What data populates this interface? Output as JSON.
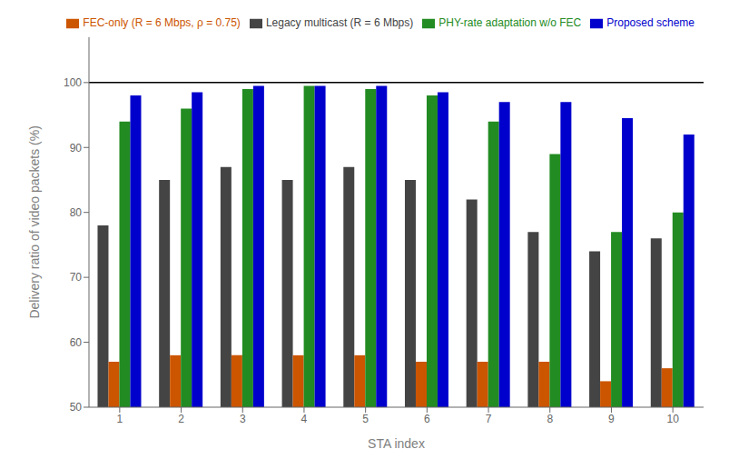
{
  "chart_data": {
    "type": "bar",
    "categories": [
      "1",
      "2",
      "3",
      "4",
      "5",
      "6",
      "7",
      "8",
      "9",
      "10"
    ],
    "series": [
      {
        "name": "Legacy multicast (R = 6 Mbps)",
        "color": "#444444",
        "values": [
          78.0,
          85.0,
          87.0,
          85.0,
          87.0,
          85.0,
          82.0,
          77.0,
          74.0,
          76.0
        ]
      },
      {
        "name": "FEC-only (R = 6 Mbps, ρ = 0.75)",
        "color": "#cc5500",
        "values": [
          57.0,
          58.0,
          58.0,
          58.0,
          58.0,
          57.0,
          57.0,
          57.0,
          54.0,
          56.0
        ]
      },
      {
        "name": "PHY-rate adaptation w/o FEC",
        "color": "#228B22",
        "values": [
          94.0,
          96.0,
          99.0,
          99.5,
          99.0,
          98.0,
          94.0,
          89.0,
          77.0,
          80.0
        ]
      },
      {
        "name": "Proposed scheme",
        "color": "#0000cc",
        "values": [
          98.0,
          98.5,
          99.5,
          99.5,
          99.5,
          98.5,
          97.0,
          97.0,
          94.5,
          92.0
        ]
      }
    ],
    "x_label": "STA index",
    "y_label": "Delivery ratio of video packets (%)",
    "ylim": [
      50,
      107
    ],
    "yticks": [
      50,
      60,
      70,
      80,
      90,
      100
    ],
    "hline": 100,
    "grid": false,
    "legend": "upper right"
  }
}
